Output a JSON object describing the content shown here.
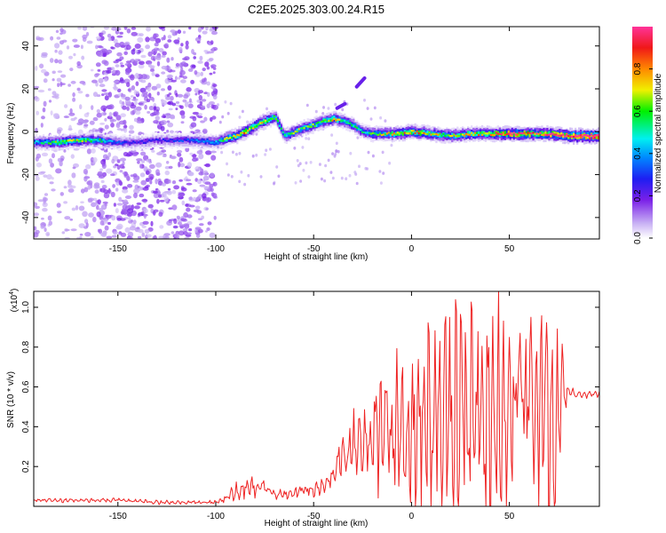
{
  "title": "C2E5.2025.303.00.24.R15",
  "colors": {
    "snr_line": "#ee2222",
    "axis": "#000000",
    "colormap": [
      "#ffffff",
      "#d0b8f8",
      "#7a20e8",
      "#1e1ef2",
      "#0088ff",
      "#00f0f0",
      "#00f000",
      "#f0f000",
      "#ff8800",
      "#f01818",
      "#ff3399"
    ]
  },
  "chart_data": [
    {
      "type": "heatmap",
      "title": "",
      "xlabel": "Height of straight line (km)",
      "ylabel": "Frequency (Hz)",
      "xlim": [
        -193,
        96
      ],
      "ylim": [
        -50,
        49
      ],
      "xticks": [
        -150,
        -100,
        -50,
        0,
        50
      ],
      "yticks": [
        -40,
        -20,
        0,
        20,
        40
      ],
      "xtick_labels": [
        "-150",
        "-100",
        "-50",
        "0",
        "50"
      ],
      "ytick_labels": [
        "-40",
        "-20",
        "0",
        "20",
        "40"
      ],
      "colorbar": {
        "label": "Normalized spectral amplitude",
        "range": [
          0,
          1
        ],
        "ticks": [
          0.0,
          0.2,
          0.4,
          0.6,
          0.8
        ],
        "tick_labels": [
          "0.0",
          "0.2",
          "0.4",
          "0.6",
          "0.8"
        ]
      },
      "ridge": {
        "x": [
          -193,
          -180,
          -170,
          -160,
          -150,
          -140,
          -130,
          -120,
          -110,
          -100,
          -95,
          -90,
          -85,
          -80,
          -75,
          -70,
          -65,
          -60,
          -55,
          -50,
          -45,
          -40,
          -35,
          -30,
          -25,
          -20,
          -10,
          0,
          10,
          20,
          30,
          40,
          50,
          60,
          70,
          80,
          96
        ],
        "freq": [
          -5,
          -5,
          -4,
          -4,
          -5,
          -5,
          -4,
          -4,
          -4,
          -5,
          -3,
          -2,
          0,
          3,
          5,
          7,
          -2,
          0,
          2,
          3,
          5,
          6,
          5,
          3,
          0,
          -1,
          -1,
          0,
          -1,
          -2,
          -1,
          -1,
          -1,
          -1,
          -1,
          -2,
          -2
        ],
        "amp": [
          0.35,
          0.55,
          0.55,
          0.45,
          0.25,
          0.2,
          0.2,
          0.25,
          0.3,
          0.35,
          0.55,
          0.6,
          0.65,
          0.6,
          0.6,
          0.5,
          0.45,
          0.55,
          0.5,
          0.5,
          0.55,
          0.6,
          0.5,
          0.45,
          0.4,
          0.5,
          0.6,
          0.7,
          0.6,
          0.55,
          0.6,
          0.65,
          0.85,
          0.75,
          0.8,
          0.9,
          1.0
        ]
      },
      "secondary_features": [
        {
          "x": [
            -38,
            -34
          ],
          "freq": [
            11,
            13
          ]
        },
        {
          "x": [
            -28,
            -24
          ],
          "freq": [
            21,
            25
          ]
        }
      ]
    },
    {
      "type": "line",
      "title": "",
      "xlabel": "Height of straight line (km)",
      "ylabel": "SNR (10 * v/v)",
      "scale_label": "(x10",
      "scale_exponent": "4",
      "scale_close": ")",
      "xlim": [
        -193,
        96
      ],
      "ylim": [
        0,
        1.08
      ],
      "xticks": [
        -150,
        -100,
        -50,
        0,
        50
      ],
      "yticks": [
        0.2,
        0.4,
        0.6,
        0.8,
        1.0
      ],
      "xtick_labels": [
        "-150",
        "-100",
        "-50",
        "0",
        "50"
      ],
      "ytick_labels": [
        "0.2",
        "0.4",
        "0.6",
        "0.8",
        "1.0"
      ],
      "series": [
        {
          "name": "SNR",
          "x": [
            -193,
            -170,
            -150,
            -130,
            -110,
            -100,
            -95,
            -90,
            -85,
            -80,
            -75,
            -70,
            -65,
            -60,
            -55,
            -50,
            -45,
            -40,
            -35,
            -30,
            -25,
            -20,
            -15,
            -10,
            -5,
            0,
            5,
            10,
            15,
            20,
            25,
            30,
            35,
            40,
            45,
            50,
            55,
            60,
            65,
            70,
            75,
            80,
            85,
            90,
            96
          ],
          "base": [
            0.03,
            0.03,
            0.03,
            0.02,
            0.02,
            0.02,
            0.04,
            0.07,
            0.09,
            0.1,
            0.09,
            0.07,
            0.06,
            0.07,
            0.08,
            0.08,
            0.1,
            0.15,
            0.28,
            0.3,
            0.32,
            0.34,
            0.36,
            0.38,
            0.4,
            0.42,
            0.44,
            0.46,
            0.47,
            0.47,
            0.48,
            0.48,
            0.48,
            0.47,
            0.47,
            0.5,
            0.52,
            0.5,
            0.45,
            0.42,
            0.46,
            0.57,
            0.57,
            0.56,
            0.56
          ],
          "amp": [
            0.01,
            0.01,
            0.01,
            0.01,
            0.01,
            0.01,
            0.02,
            0.04,
            0.05,
            0.05,
            0.04,
            0.03,
            0.03,
            0.03,
            0.03,
            0.03,
            0.04,
            0.05,
            0.12,
            0.15,
            0.2,
            0.25,
            0.3,
            0.32,
            0.35,
            0.38,
            0.42,
            0.48,
            0.5,
            0.52,
            0.55,
            0.56,
            0.55,
            0.54,
            0.52,
            0.35,
            0.32,
            0.4,
            0.5,
            0.52,
            0.45,
            0.02,
            0.02,
            0.02,
            0.02
          ]
        }
      ]
    }
  ]
}
